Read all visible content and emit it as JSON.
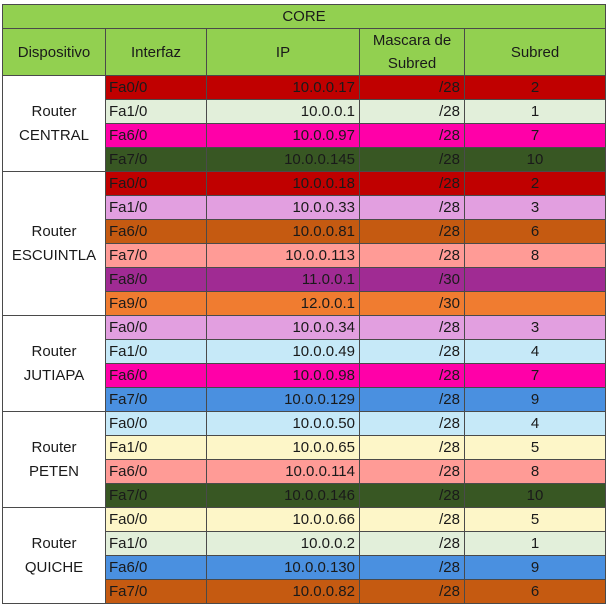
{
  "title": "CORE",
  "headers": {
    "device": "Dispositivo",
    "interface": "Interfaz",
    "ip": "IP",
    "mask": "Mascara de Subred",
    "subnet": "Subred"
  },
  "colors": {
    "header_green": "#92d050",
    "red": "#c00000",
    "light_green": "#e2efda",
    "magenta": "#ff00a8",
    "dark_green": "#385723",
    "light_purple": "#e29fe0",
    "brown_orange": "#c55a11",
    "salmon": "#ff9b96",
    "purple": "#a02b93",
    "orange": "#f07c30",
    "light_blue": "#c6e9f8",
    "blue": "#4a90e0",
    "light_yellow": "#fdf6c8"
  },
  "groups": [
    {
      "device": "Router\nCENTRAL",
      "rows": [
        {
          "iface": "Fa0/0",
          "ip": "10.0.0.17",
          "mask": "/28",
          "subnet": "2",
          "color": "#c00000"
        },
        {
          "iface": "Fa1/0",
          "ip": "10.0.0.1",
          "mask": "/28",
          "subnet": "1",
          "color": "#e2efda"
        },
        {
          "iface": "Fa6/0",
          "ip": "10.0.0.97",
          "mask": "/28",
          "subnet": "7",
          "color": "#ff00a8"
        },
        {
          "iface": "Fa7/0",
          "ip": "10.0.0.145",
          "mask": "/28",
          "subnet": "10",
          "color": "#385723"
        }
      ]
    },
    {
      "device": "Router\nESCUINTLA",
      "rows": [
        {
          "iface": "Fa0/0",
          "ip": "10.0.0.18",
          "mask": "/28",
          "subnet": "2",
          "color": "#c00000"
        },
        {
          "iface": "Fa1/0",
          "ip": "10.0.0.33",
          "mask": "/28",
          "subnet": "3",
          "color": "#e29fe0"
        },
        {
          "iface": "Fa6/0",
          "ip": "10.0.0.81",
          "mask": "/28",
          "subnet": "6",
          "color": "#c55a11"
        },
        {
          "iface": "Fa7/0",
          "ip": "10.0.0.113",
          "mask": "/28",
          "subnet": "8",
          "color": "#ff9b96"
        },
        {
          "iface": "Fa8/0",
          "ip": "11.0.0.1",
          "mask": "/30",
          "subnet": "",
          "color": "#a02b93"
        },
        {
          "iface": "Fa9/0",
          "ip": "12.0.0.1",
          "mask": "/30",
          "subnet": "",
          "color": "#f07c30"
        }
      ]
    },
    {
      "device": "Router\nJUTIAPA",
      "rows": [
        {
          "iface": "Fa0/0",
          "ip": "10.0.0.34",
          "mask": "/28",
          "subnet": "3",
          "color": "#e29fe0"
        },
        {
          "iface": "Fa1/0",
          "ip": "10.0.0.49",
          "mask": "/28",
          "subnet": "4",
          "color": "#c6e9f8"
        },
        {
          "iface": "Fa6/0",
          "ip": "10.0.0.98",
          "mask": "/28",
          "subnet": "7",
          "color": "#ff00a8"
        },
        {
          "iface": "Fa7/0",
          "ip": "10.0.0.129",
          "mask": "/28",
          "subnet": "9",
          "color": "#4a90e0"
        }
      ]
    },
    {
      "device": "Router\nPETEN",
      "rows": [
        {
          "iface": "Fa0/0",
          "ip": "10.0.0.50",
          "mask": "/28",
          "subnet": "4",
          "color": "#c6e9f8"
        },
        {
          "iface": "Fa1/0",
          "ip": "10.0.0.65",
          "mask": "/28",
          "subnet": "5",
          "color": "#fdf6c8"
        },
        {
          "iface": "Fa6/0",
          "ip": "10.0.0.114",
          "mask": "/28",
          "subnet": "8",
          "color": "#ff9b96"
        },
        {
          "iface": "Fa7/0",
          "ip": "10.0.0.146",
          "mask": "/28",
          "subnet": "10",
          "color": "#385723"
        }
      ]
    },
    {
      "device": "Router\nQUICHE",
      "rows": [
        {
          "iface": "Fa0/0",
          "ip": "10.0.0.66",
          "mask": "/28",
          "subnet": "5",
          "color": "#fdf6c8"
        },
        {
          "iface": "Fa1/0",
          "ip": "10.0.0.2",
          "mask": "/28",
          "subnet": "1",
          "color": "#e2efda"
        },
        {
          "iface": "Fa6/0",
          "ip": "10.0.0.130",
          "mask": "/28",
          "subnet": "9",
          "color": "#4a90e0"
        },
        {
          "iface": "Fa7/0",
          "ip": "10.0.0.82",
          "mask": "/28",
          "subnet": "6",
          "color": "#c55a11"
        }
      ]
    }
  ]
}
